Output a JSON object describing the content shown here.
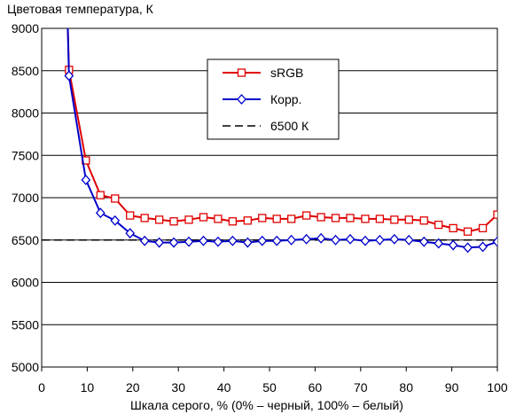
{
  "chart_data": {
    "type": "line",
    "title": "Цветовая температура, К",
    "xlabel": "Шкала серого, % (0% – черный, 100% – белый)",
    "ylabel": "",
    "xlim": [
      0,
      100
    ],
    "ylim": [
      5000,
      9000
    ],
    "x_ticks": [
      "0",
      "10",
      "20",
      "30",
      "40",
      "50",
      "60",
      "70",
      "80",
      "90",
      "100"
    ],
    "y_ticks": [
      "5000",
      "5500",
      "6000",
      "6500",
      "7000",
      "7500",
      "8000",
      "8500",
      "9000"
    ],
    "grid": "horizontal",
    "legend_position": "top-center",
    "series": [
      {
        "name": "sRGB",
        "color": "#e00000",
        "marker": "square",
        "x": [
          6,
          9.7,
          12.9,
          16.1,
          19.4,
          22.6,
          25.8,
          29,
          32.3,
          35.5,
          38.7,
          41.9,
          45.2,
          48.4,
          51.6,
          54.8,
          58.1,
          61.3,
          64.5,
          67.7,
          71,
          74.2,
          77.4,
          80.6,
          83.9,
          87.1,
          90.3,
          93.5,
          96.8,
          100
        ],
        "values": [
          8510,
          7440,
          7030,
          6990,
          6790,
          6760,
          6740,
          6720,
          6740,
          6770,
          6750,
          6720,
          6730,
          6760,
          6750,
          6750,
          6790,
          6770,
          6760,
          6760,
          6750,
          6750,
          6740,
          6740,
          6730,
          6680,
          6640,
          6600,
          6640,
          6800
        ]
      },
      {
        "name": "Корр.",
        "color": "#0000cc",
        "marker": "diamond",
        "x": [
          6,
          9.7,
          12.9,
          16.1,
          19.4,
          22.6,
          25.8,
          29,
          32.3,
          35.5,
          38.7,
          41.9,
          45.2,
          48.4,
          51.6,
          54.8,
          58.1,
          61.3,
          64.5,
          67.7,
          71,
          74.2,
          77.4,
          80.6,
          83.9,
          87.1,
          90.3,
          93.5,
          96.8,
          100
        ],
        "values": [
          8440,
          7210,
          6820,
          6730,
          6580,
          6490,
          6470,
          6470,
          6480,
          6490,
          6480,
          6490,
          6470,
          6490,
          6490,
          6500,
          6510,
          6520,
          6500,
          6510,
          6490,
          6500,
          6510,
          6500,
          6480,
          6460,
          6440,
          6410,
          6420,
          6480
        ]
      },
      {
        "name": "6500 К",
        "color": "#000000",
        "dashed": true,
        "x": [
          0,
          100
        ],
        "values": [
          6500,
          6500
        ]
      }
    ]
  }
}
